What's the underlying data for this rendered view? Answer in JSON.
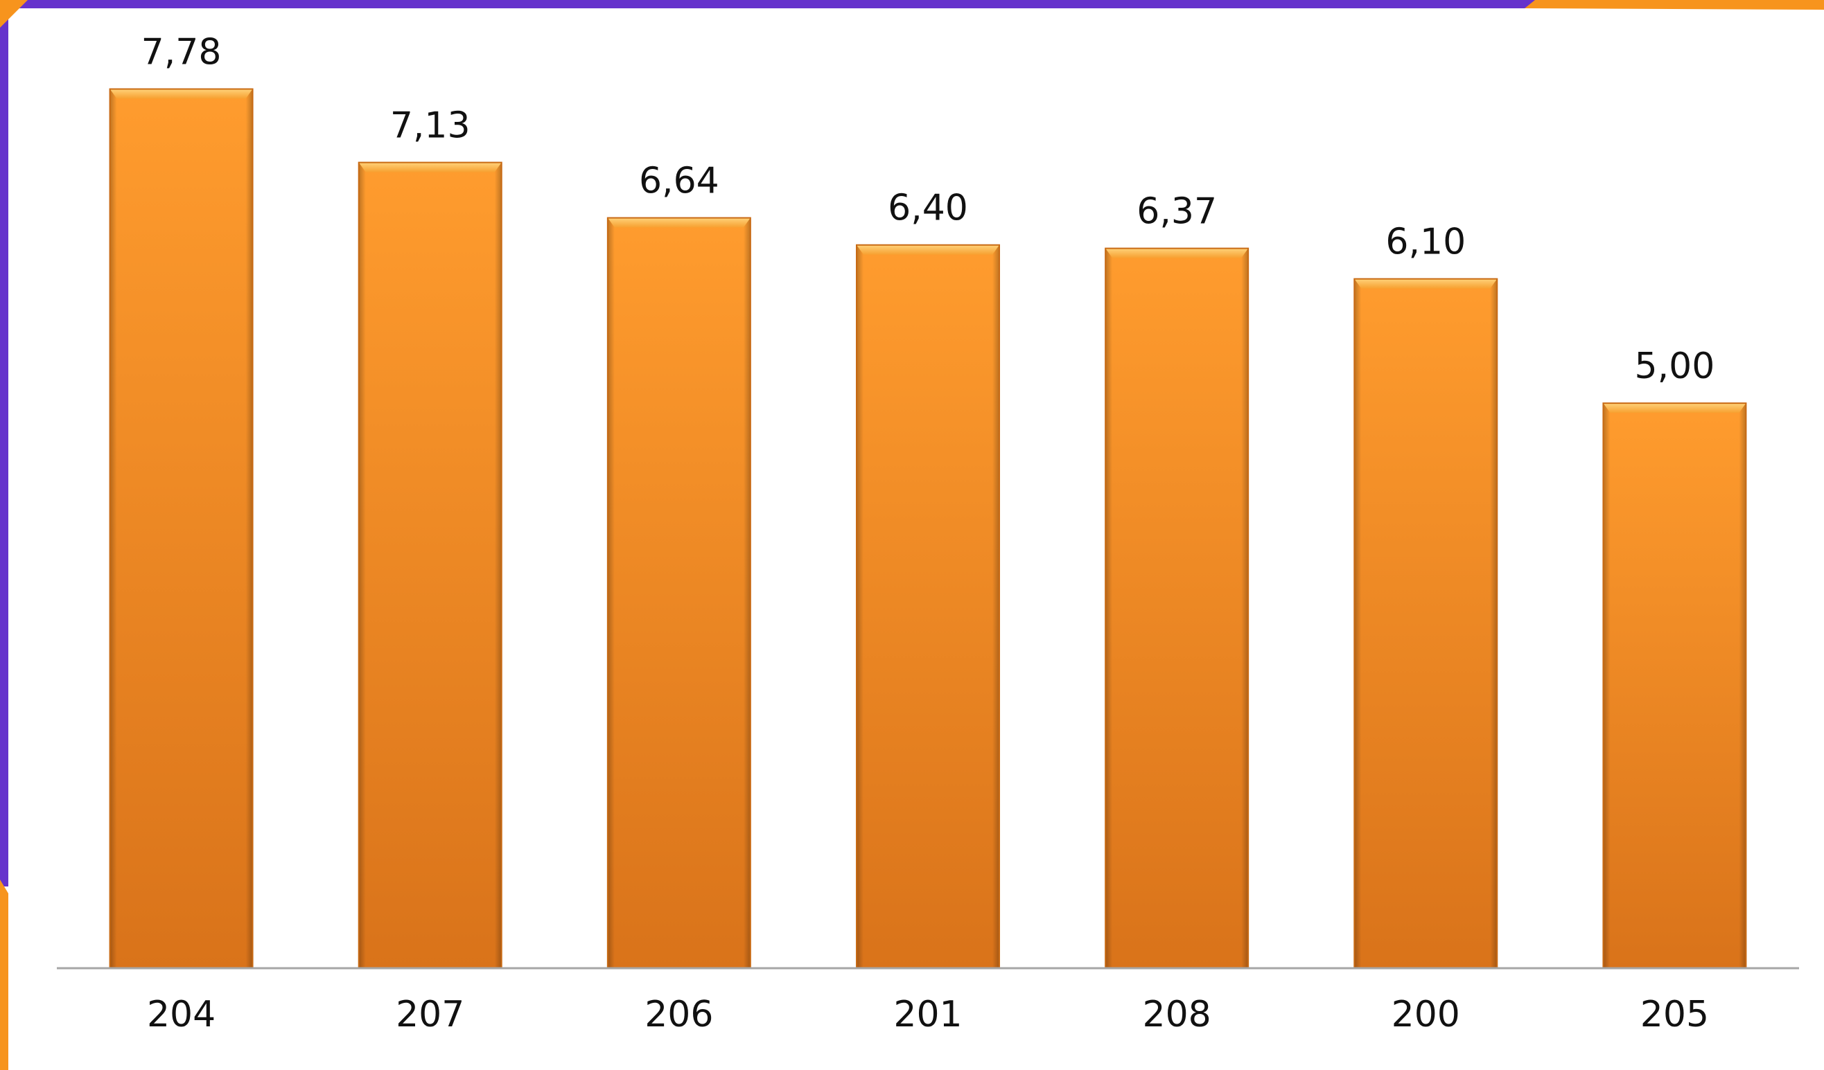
{
  "chart_data": {
    "type": "bar",
    "categories": [
      "204",
      "207",
      "206",
      "201",
      "208",
      "200",
      "205"
    ],
    "values": [
      7.78,
      7.13,
      6.64,
      6.4,
      6.37,
      6.1,
      5.0
    ],
    "data_labels": [
      "7,78",
      "7,13",
      "6,64",
      "6,40",
      "6,37",
      "6,10",
      "5,00"
    ],
    "title": "",
    "xlabel": "",
    "ylabel": "",
    "ylim": [
      0,
      8.2
    ],
    "grid": false,
    "legend": "none",
    "colors": {
      "bar_top": "#fbb040",
      "bar_main": "#f7941d",
      "bar_dark": "#d9731a",
      "frame_purple": "#6633cc",
      "frame_orange": "#f7941d",
      "axis": "#a6a6a6"
    }
  }
}
